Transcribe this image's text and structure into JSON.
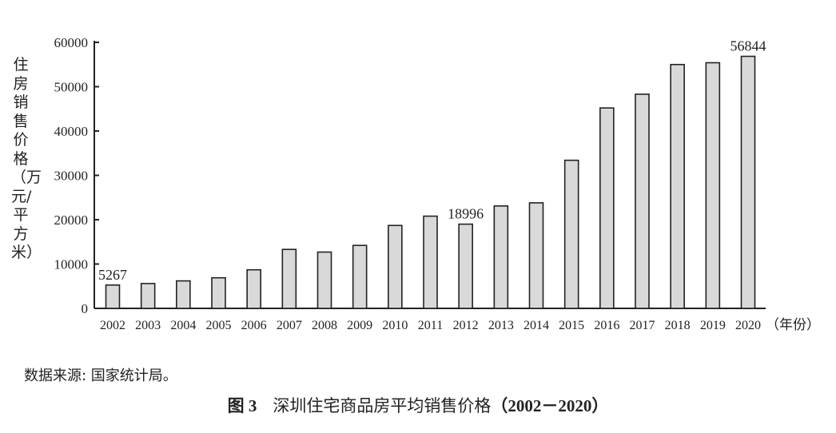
{
  "chart_data": {
    "type": "bar",
    "title": "图 3　深圳住宅商品房平均销售价格（2002－2020）",
    "figure_number": "图 3",
    "caption_text": "深圳住宅商品房平均销售价格",
    "caption_range": "（2002－2020）",
    "xlabel": "（年份）",
    "ylabel": "住房销售价格（万元/平方米）",
    "ylim": [
      0,
      60000
    ],
    "yticks": [
      0,
      10000,
      20000,
      30000,
      40000,
      50000,
      60000
    ],
    "grid": false,
    "categories": [
      "2002",
      "2003",
      "2004",
      "2005",
      "2006",
      "2007",
      "2008",
      "2009",
      "2010",
      "2011",
      "2012",
      "2013",
      "2014",
      "2015",
      "2016",
      "2017",
      "2018",
      "2019",
      "2020"
    ],
    "values": [
      5267,
      5600,
      6200,
      6900,
      8700,
      13300,
      12700,
      14200,
      18700,
      20800,
      18996,
      23100,
      23800,
      33400,
      45200,
      48300,
      55000,
      55400,
      56844
    ],
    "data_labels": {
      "2002": "5267",
      "2012": "18996",
      "2020": "56844"
    },
    "bar_color": "#d9d9d9",
    "source": "数据来源: 国家统计局。"
  }
}
